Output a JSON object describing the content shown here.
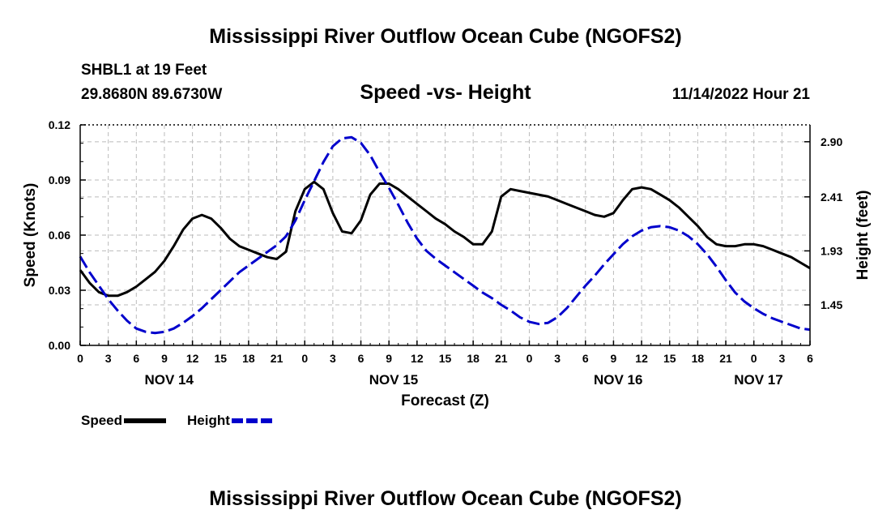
{
  "header": {
    "title": "Mississippi River Outflow Ocean Cube (NGOFS2)",
    "station": "SHBL1 at 19 Feet",
    "coords": "29.8680N  89.6730W",
    "datetime": "11/14/2022 Hour 21",
    "bottom_title": "Mississippi River Outflow Ocean Cube (NGOFS2)"
  },
  "legend": {
    "speed": "Speed",
    "height": "Height"
  },
  "colors": {
    "speed": "#000000",
    "height": "#0000cc",
    "grid": "#bbbbbb"
  },
  "chart_data": {
    "type": "line",
    "title": "Speed -vs- Height",
    "xlabel": "Forecast (Z)",
    "ylabel": "Speed (Knots)",
    "y2label": "Height (feet)",
    "x_unit": "hours from NOV 14 00Z",
    "xlim": [
      0,
      78
    ],
    "ylim": [
      0,
      0.12
    ],
    "y2lim": [
      1.09,
      3.05
    ],
    "x_ticks": [
      0,
      3,
      6,
      9,
      12,
      15,
      18,
      21,
      24,
      27,
      30,
      33,
      36,
      39,
      42,
      45,
      48,
      51,
      54,
      57,
      60,
      63,
      66,
      69,
      72,
      75,
      78
    ],
    "x_tick_labels": [
      "0",
      "3",
      "6",
      "9",
      "12",
      "15",
      "18",
      "21",
      "0",
      "3",
      "6",
      "9",
      "12",
      "15",
      "18",
      "21",
      "0",
      "3",
      "6",
      "9",
      "12",
      "15",
      "18",
      "21",
      "0",
      "3",
      "6"
    ],
    "y_ticks": [
      0,
      0.03,
      0.06,
      0.09,
      0.12
    ],
    "y_tick_labels": [
      "0.00",
      "0.03",
      "0.06",
      "0.09",
      "0.12"
    ],
    "y2_ticks": [
      1.45,
      1.93,
      2.41,
      2.9
    ],
    "y2_tick_labels": [
      "1.45",
      "1.93",
      "2.41",
      "2.90"
    ],
    "day_labels": [
      {
        "x": 9.5,
        "label": "NOV 14"
      },
      {
        "x": 33.5,
        "label": "NOV 15"
      },
      {
        "x": 57.5,
        "label": "NOV 16"
      },
      {
        "x": 72.5,
        "label": "NOV 17"
      }
    ],
    "series": [
      {
        "name": "Speed",
        "axis": "left",
        "style": "solid",
        "x": [
          0,
          1,
          2,
          3,
          4,
          5,
          6,
          7,
          8,
          9,
          10,
          11,
          12,
          13,
          14,
          15,
          16,
          17,
          18,
          19,
          20,
          21,
          22,
          23,
          24,
          25,
          26,
          27,
          28,
          29,
          30,
          31,
          32,
          33,
          34,
          35,
          36,
          37,
          38,
          39,
          40,
          41,
          42,
          43,
          44,
          45,
          46,
          47,
          48,
          49,
          50,
          51,
          52,
          53,
          54,
          55,
          56,
          57,
          58,
          59,
          60,
          61,
          62,
          63,
          64,
          65,
          66,
          67,
          68,
          69,
          70,
          71,
          72,
          73,
          74,
          75,
          76,
          77,
          78
        ],
        "values": [
          0.041,
          0.034,
          0.029,
          0.027,
          0.027,
          0.029,
          0.032,
          0.036,
          0.04,
          0.046,
          0.054,
          0.063,
          0.069,
          0.071,
          0.069,
          0.064,
          0.058,
          0.054,
          0.052,
          0.05,
          0.048,
          0.047,
          0.051,
          0.073,
          0.085,
          0.089,
          0.085,
          0.072,
          0.062,
          0.061,
          0.068,
          0.082,
          0.088,
          0.088,
          0.085,
          0.081,
          0.077,
          0.073,
          0.069,
          0.066,
          0.062,
          0.059,
          0.055,
          0.055,
          0.062,
          0.081,
          0.085,
          0.084,
          0.083,
          0.082,
          0.081,
          0.079,
          0.077,
          0.075,
          0.073,
          0.071,
          0.07,
          0.072,
          0.079,
          0.085,
          0.086,
          0.085,
          0.082,
          0.079,
          0.075,
          0.07,
          0.065,
          0.059,
          0.055,
          0.054,
          0.054,
          0.055,
          0.055,
          0.054,
          0.052,
          0.05,
          0.048,
          0.045,
          0.042
        ]
      },
      {
        "name": "Height",
        "axis": "right",
        "style": "dashed",
        "x": [
          0,
          1,
          2,
          3,
          4,
          5,
          6,
          7,
          8,
          9,
          10,
          11,
          12,
          13,
          14,
          15,
          16,
          17,
          18,
          19,
          20,
          21,
          22,
          23,
          24,
          25,
          26,
          27,
          28,
          29,
          30,
          31,
          32,
          33,
          34,
          35,
          36,
          37,
          38,
          39,
          40,
          41,
          42,
          43,
          44,
          45,
          46,
          47,
          48,
          49,
          50,
          51,
          52,
          53,
          54,
          55,
          56,
          57,
          58,
          59,
          60,
          61,
          62,
          63,
          64,
          65,
          66,
          67,
          68,
          69,
          70,
          71,
          72,
          73,
          74,
          75,
          76,
          77,
          78
        ],
        "values": [
          1.88,
          1.74,
          1.62,
          1.5,
          1.4,
          1.31,
          1.24,
          1.21,
          1.2,
          1.21,
          1.24,
          1.29,
          1.35,
          1.42,
          1.5,
          1.58,
          1.66,
          1.74,
          1.8,
          1.86,
          1.92,
          1.98,
          2.06,
          2.2,
          2.38,
          2.55,
          2.72,
          2.86,
          2.93,
          2.94,
          2.89,
          2.78,
          2.63,
          2.49,
          2.34,
          2.18,
          2.04,
          1.93,
          1.86,
          1.8,
          1.74,
          1.68,
          1.62,
          1.56,
          1.51,
          1.45,
          1.4,
          1.34,
          1.3,
          1.28,
          1.29,
          1.34,
          1.42,
          1.52,
          1.62,
          1.71,
          1.81,
          1.9,
          1.99,
          2.06,
          2.11,
          2.14,
          2.15,
          2.14,
          2.11,
          2.06,
          1.99,
          1.9,
          1.79,
          1.67,
          1.56,
          1.48,
          1.42,
          1.37,
          1.33,
          1.3,
          1.27,
          1.24,
          1.23
        ]
      }
    ]
  }
}
